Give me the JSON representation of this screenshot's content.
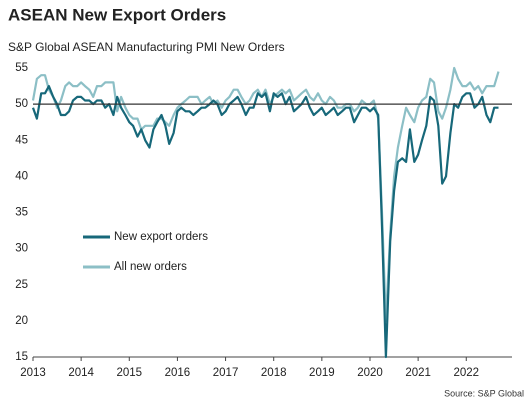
{
  "chart_data": {
    "type": "line",
    "title": "ASEAN New Export Orders",
    "subtitle": "S&P Global ASEAN Manufacturing PMI New Orders",
    "source": "Source: S&P Global",
    "x": [
      2013,
      2013.08,
      2013.17,
      2013.25,
      2013.33,
      2013.42,
      2013.5,
      2013.58,
      2013.67,
      2013.75,
      2013.83,
      2013.92,
      2014,
      2014.08,
      2014.17,
      2014.25,
      2014.33,
      2014.42,
      2014.5,
      2014.58,
      2014.67,
      2014.75,
      2014.83,
      2014.92,
      2015,
      2015.08,
      2015.17,
      2015.25,
      2015.33,
      2015.42,
      2015.5,
      2015.58,
      2015.67,
      2015.75,
      2015.83,
      2015.92,
      2016,
      2016.08,
      2016.17,
      2016.25,
      2016.33,
      2016.42,
      2016.5,
      2016.58,
      2016.67,
      2016.75,
      2016.83,
      2016.92,
      2017,
      2017.08,
      2017.17,
      2017.25,
      2017.33,
      2017.42,
      2017.5,
      2017.58,
      2017.67,
      2017.75,
      2017.83,
      2017.92,
      2018,
      2018.08,
      2018.17,
      2018.25,
      2018.33,
      2018.42,
      2018.5,
      2018.58,
      2018.67,
      2018.75,
      2018.83,
      2018.92,
      2019,
      2019.08,
      2019.17,
      2019.25,
      2019.33,
      2019.42,
      2019.5,
      2019.58,
      2019.67,
      2019.75,
      2019.83,
      2019.92,
      2020,
      2020.08,
      2020.17,
      2020.25,
      2020.33,
      2020.42,
      2020.5,
      2020.58,
      2020.67,
      2020.75,
      2020.83,
      2020.92,
      2021,
      2021.08,
      2021.17,
      2021.25,
      2021.33,
      2021.42,
      2021.5,
      2021.58,
      2021.67,
      2021.75,
      2021.83,
      2021.92,
      2022,
      2022.08,
      2022.17,
      2022.25,
      2022.33,
      2022.42,
      2022.5,
      2022.58,
      2022.67
    ],
    "series": [
      {
        "name": "New export orders",
        "color": "#17687a",
        "values": [
          49.5,
          48,
          51.5,
          51.5,
          52.5,
          51,
          50,
          48.5,
          48.5,
          49,
          50.5,
          51,
          51,
          50.5,
          50.5,
          50,
          50.5,
          50.5,
          49.5,
          50,
          48.5,
          51,
          49.5,
          48.5,
          47.5,
          47,
          45.5,
          46.5,
          45,
          44,
          46.5,
          47.5,
          48.5,
          47,
          44.5,
          46,
          49,
          49.5,
          49,
          49,
          48.5,
          49,
          49.5,
          49.5,
          50,
          50.5,
          50,
          48.5,
          49,
          50,
          50.5,
          51,
          50,
          48.5,
          49.5,
          49.5,
          51.5,
          51,
          51.5,
          49,
          51.5,
          51,
          51.5,
          50,
          51,
          49,
          49.5,
          50,
          51,
          49.5,
          48.5,
          49,
          49.5,
          48.5,
          49,
          49.5,
          48.5,
          49,
          49.5,
          49.5,
          47.5,
          48.5,
          49.5,
          49.5,
          49,
          49.5,
          48.5,
          33,
          15,
          31,
          38,
          42,
          42.5,
          42,
          46.5,
          42,
          43,
          45,
          47,
          51,
          50.5,
          47,
          39,
          40,
          46,
          50,
          49.5,
          51,
          51.5,
          51.5,
          49.5,
          50,
          51,
          48.5,
          47.5,
          49.5,
          49.5
        ]
      },
      {
        "name": "All new orders",
        "color": "#8cbfc6",
        "values": [
          50.5,
          53.5,
          54,
          54,
          52,
          51,
          49.5,
          50.5,
          52.5,
          53,
          52.5,
          52.5,
          53,
          52.5,
          52,
          51,
          52.5,
          52.5,
          53,
          53,
          53,
          49,
          51,
          49.5,
          48.5,
          48,
          48,
          46.5,
          47,
          47,
          47,
          48,
          48,
          47.5,
          47,
          48.5,
          49.5,
          50,
          50.5,
          51,
          51,
          51,
          50,
          50.5,
          51,
          50,
          50.5,
          49.5,
          50.5,
          51,
          52,
          52,
          51,
          50,
          50.5,
          51.5,
          52,
          51,
          52,
          50,
          51,
          51.5,
          52,
          51.5,
          52,
          50.5,
          51,
          51.5,
          52,
          51,
          50.5,
          51.5,
          50.5,
          50,
          51,
          50.5,
          49.5,
          49.5,
          50,
          50,
          49,
          49.5,
          50.5,
          50,
          50,
          50.5,
          48,
          35,
          20,
          32,
          40,
          44,
          47,
          49.5,
          48.5,
          47.5,
          49.5,
          50.5,
          51,
          53.5,
          53,
          49,
          48,
          49.5,
          52,
          55,
          53.5,
          52.5,
          52.5,
          53,
          52,
          52.5,
          51.5,
          52.5,
          52.5,
          52.5,
          54.5
        ]
      }
    ],
    "xlim": [
      2013,
      2022.95
    ],
    "xticks": [
      2013,
      2014,
      2015,
      2016,
      2017,
      2018,
      2019,
      2020,
      2021,
      2022
    ],
    "ylim": [
      15,
      55
    ],
    "yticks": [
      15,
      20,
      25,
      30,
      35,
      40,
      45,
      50,
      55
    ],
    "reference_line": 50,
    "grid": false,
    "legend": "lower left"
  }
}
